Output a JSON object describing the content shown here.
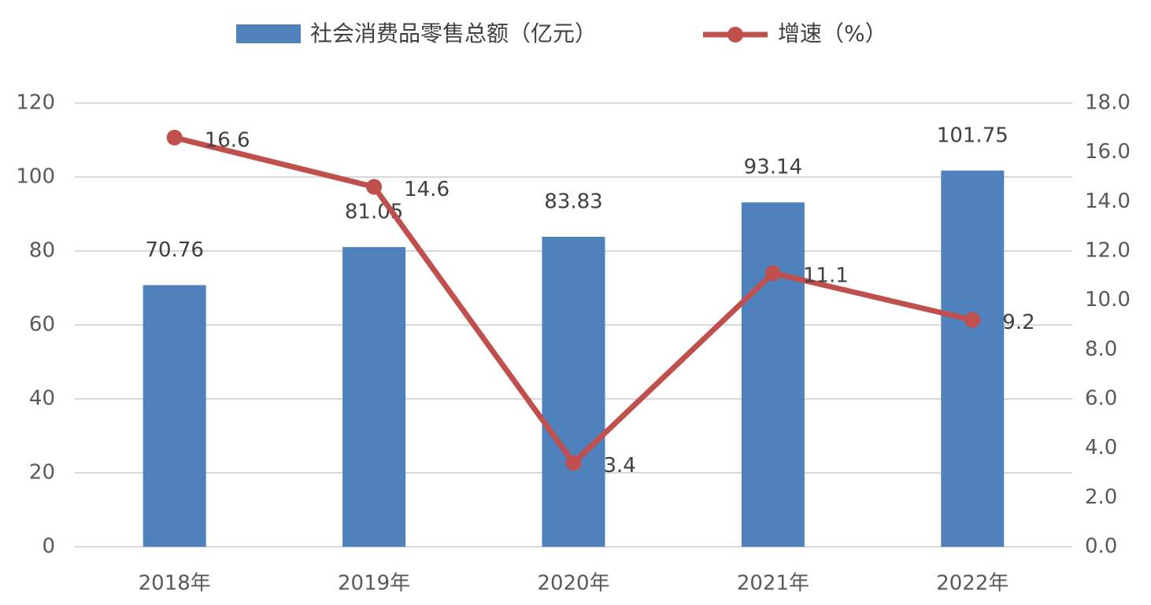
{
  "chart_data": {
    "type": "bar",
    "categories": [
      "2018年",
      "2019年",
      "2020年",
      "2021年",
      "2022年"
    ],
    "series": [
      {
        "name": "社会消费品零售总额（亿元）",
        "type": "bar",
        "color": "#4f81bd",
        "values": [
          70.76,
          81.05,
          83.83,
          93.14,
          101.75
        ]
      },
      {
        "name": "增速（%）",
        "type": "line",
        "axis": "y2",
        "color": "#c0504d",
        "values": [
          16.6,
          14.6,
          3.4,
          11.1,
          9.2
        ]
      }
    ],
    "ylim": [
      0,
      120
    ],
    "yticks": [
      0,
      20,
      40,
      60,
      80,
      100,
      120
    ],
    "y2lim": [
      0,
      18
    ],
    "y2ticks": [
      {
        "value": 0,
        "label": "0.0"
      },
      {
        "value": 2,
        "label": "2.0"
      },
      {
        "value": 4,
        "label": "4.0"
      },
      {
        "value": 6,
        "label": "6.0"
      },
      {
        "value": 8,
        "label": "8.0"
      },
      {
        "value": 10,
        "label": "10.0"
      },
      {
        "value": 12,
        "label": "12.0"
      },
      {
        "value": 14,
        "label": "14.0"
      },
      {
        "value": 16,
        "label": "16.0"
      },
      {
        "value": 18,
        "label": "18.0"
      }
    ],
    "grid": true,
    "legend": "top"
  }
}
